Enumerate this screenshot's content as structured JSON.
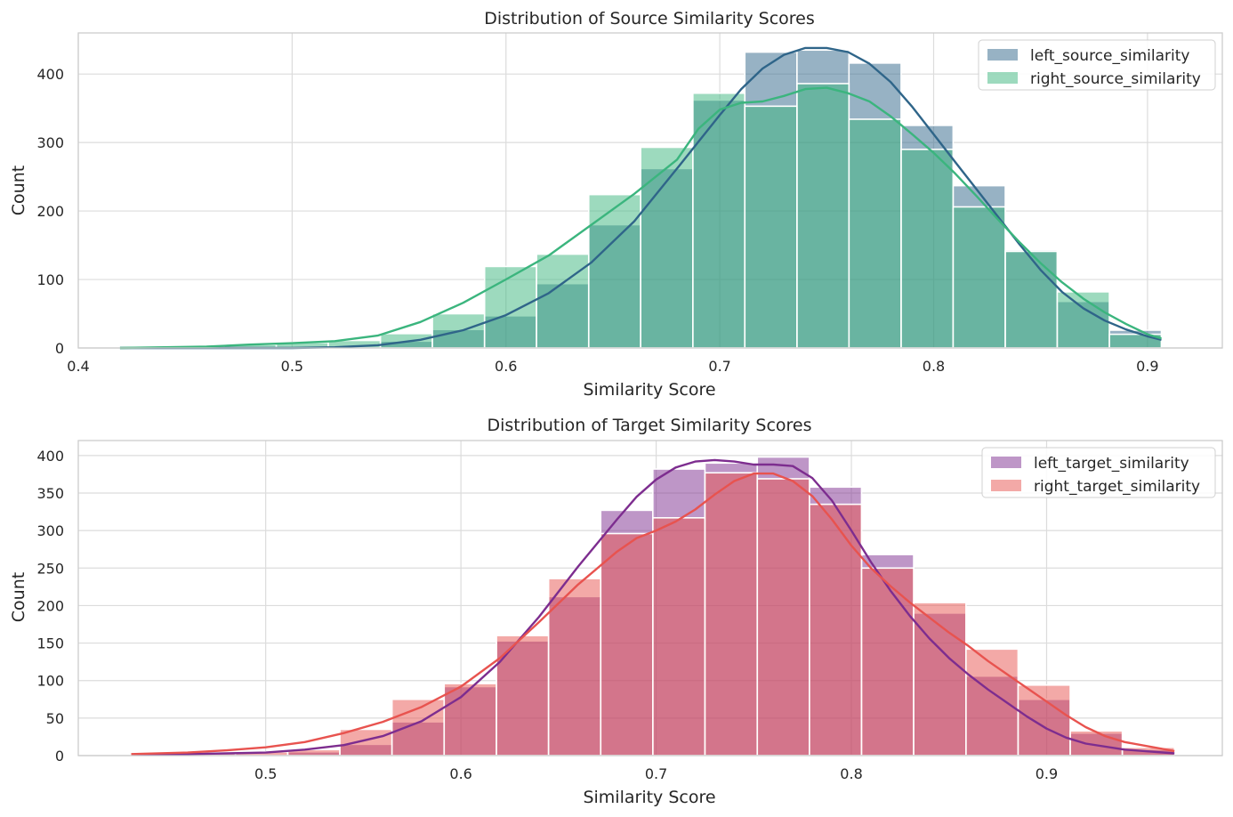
{
  "chart_data": [
    {
      "type": "bar",
      "subtype": "histogram-with-kde",
      "title": "Distribution of Source Similarity Scores",
      "xlabel": "Similarity Score",
      "ylabel": "Count",
      "xlim": [
        0.4,
        0.935
      ],
      "ylim": [
        0,
        460
      ],
      "xticks": [
        0.4,
        0.5,
        0.6,
        0.7,
        0.8,
        0.9
      ],
      "xtick_labels": [
        "0.4",
        "0.5",
        "0.6",
        "0.7",
        "0.8",
        "0.9"
      ],
      "yticks": [
        0,
        100,
        200,
        300,
        400
      ],
      "ytick_labels": [
        "0",
        "100",
        "200",
        "300",
        "400"
      ],
      "grid": true,
      "legend_position": "top-right",
      "bin_edges": [
        0.4195,
        0.4439,
        0.4682,
        0.4926,
        0.5169,
        0.5413,
        0.5656,
        0.59,
        0.6143,
        0.6387,
        0.663,
        0.6874,
        0.7117,
        0.7361,
        0.7604,
        0.7848,
        0.8091,
        0.8335,
        0.8578,
        0.8822,
        0.9065
      ],
      "series": [
        {
          "name": "left_source_similarity",
          "color": "#2f6589",
          "fill_opacity": 0.5,
          "values": [
            1,
            0,
            0,
            0,
            1,
            10,
            27,
            47,
            94,
            180,
            262,
            362,
            432,
            435,
            416,
            325,
            237,
            143,
            68,
            26
          ],
          "kde": [
            [
              0.4195,
              0
            ],
            [
              0.45,
              0
            ],
            [
              0.5,
              0
            ],
            [
              0.52,
              1
            ],
            [
              0.54,
              4
            ],
            [
              0.56,
              12
            ],
            [
              0.58,
              26
            ],
            [
              0.6,
              48
            ],
            [
              0.62,
              80
            ],
            [
              0.64,
              125
            ],
            [
              0.66,
              185
            ],
            [
              0.68,
              262
            ],
            [
              0.7,
              340
            ],
            [
              0.71,
              378
            ],
            [
              0.72,
              408
            ],
            [
              0.73,
              428
            ],
            [
              0.74,
              438
            ],
            [
              0.75,
              438
            ],
            [
              0.76,
              432
            ],
            [
              0.77,
              415
            ],
            [
              0.78,
              388
            ],
            [
              0.79,
              352
            ],
            [
              0.8,
              312
            ],
            [
              0.81,
              272
            ],
            [
              0.82,
              232
            ],
            [
              0.83,
              192
            ],
            [
              0.84,
              152
            ],
            [
              0.85,
              114
            ],
            [
              0.86,
              82
            ],
            [
              0.87,
              58
            ],
            [
              0.88,
              40
            ],
            [
              0.89,
              27
            ],
            [
              0.9,
              17
            ],
            [
              0.9065,
              12
            ]
          ]
        },
        {
          "name": "right_source_similarity",
          "color": "#3bb57e",
          "fill_opacity": 0.5,
          "values": [
            1,
            2,
            5,
            8,
            11,
            21,
            50,
            119,
            137,
            224,
            293,
            372,
            353,
            386,
            334,
            290,
            206,
            141,
            82,
            20
          ],
          "kde": [
            [
              0.4195,
              0
            ],
            [
              0.44,
              1
            ],
            [
              0.46,
              2
            ],
            [
              0.48,
              5
            ],
            [
              0.5,
              7
            ],
            [
              0.52,
              10
            ],
            [
              0.54,
              18
            ],
            [
              0.56,
              38
            ],
            [
              0.58,
              66
            ],
            [
              0.6,
              100
            ],
            [
              0.62,
              135
            ],
            [
              0.64,
              180
            ],
            [
              0.66,
              225
            ],
            [
              0.68,
              275
            ],
            [
              0.69,
              320
            ],
            [
              0.7,
              348
            ],
            [
              0.71,
              358
            ],
            [
              0.72,
              360
            ],
            [
              0.73,
              368
            ],
            [
              0.74,
              378
            ],
            [
              0.75,
              380
            ],
            [
              0.76,
              372
            ],
            [
              0.77,
              360
            ],
            [
              0.78,
              338
            ],
            [
              0.79,
              312
            ],
            [
              0.8,
              285
            ],
            [
              0.81,
              255
            ],
            [
              0.82,
              222
            ],
            [
              0.83,
              188
            ],
            [
              0.84,
              155
            ],
            [
              0.85,
              124
            ],
            [
              0.86,
              96
            ],
            [
              0.87,
              72
            ],
            [
              0.88,
              52
            ],
            [
              0.89,
              35
            ],
            [
              0.9,
              20
            ],
            [
              0.9065,
              14
            ]
          ]
        }
      ]
    },
    {
      "type": "bar",
      "subtype": "histogram-with-kde",
      "title": "Distribution of Target Similarity Scores",
      "xlabel": "Similarity Score",
      "ylabel": "Count",
      "xlim": [
        0.404,
        0.99
      ],
      "ylim": [
        0,
        420
      ],
      "xticks": [
        0.5,
        0.6,
        0.7,
        0.8,
        0.9
      ],
      "xtick_labels": [
        "0.5",
        "0.6",
        "0.7",
        "0.8",
        "0.9"
      ],
      "yticks": [
        0,
        50,
        100,
        150,
        200,
        250,
        300,
        350,
        400
      ],
      "ytick_labels": [
        "0",
        "50",
        "100",
        "150",
        "200",
        "250",
        "300",
        "350",
        "400"
      ],
      "grid": true,
      "legend_position": "top-right",
      "bin_edges": [
        0.4311,
        0.4578,
        0.4845,
        0.5113,
        0.538,
        0.5647,
        0.5914,
        0.6182,
        0.6449,
        0.6716,
        0.6983,
        0.725,
        0.7518,
        0.7785,
        0.8052,
        0.8319,
        0.8587,
        0.8854,
        0.9121,
        0.9388,
        0.9655
      ],
      "series": [
        {
          "name": "left_target_similarity",
          "color": "#7d2d8f",
          "fill_opacity": 0.5,
          "values": [
            1,
            1,
            2,
            5,
            15,
            45,
            92,
            153,
            212,
            327,
            382,
            390,
            398,
            358,
            268,
            190,
            106,
            75,
            30,
            8
          ],
          "kde": [
            [
              0.4311,
              1
            ],
            [
              0.46,
              2
            ],
            [
              0.48,
              3
            ],
            [
              0.5,
              4
            ],
            [
              0.52,
              8
            ],
            [
              0.54,
              14
            ],
            [
              0.56,
              26
            ],
            [
              0.58,
              46
            ],
            [
              0.6,
              78
            ],
            [
              0.62,
              125
            ],
            [
              0.64,
              185
            ],
            [
              0.66,
              252
            ],
            [
              0.68,
              315
            ],
            [
              0.69,
              345
            ],
            [
              0.7,
              368
            ],
            [
              0.71,
              384
            ],
            [
              0.72,
              392
            ],
            [
              0.73,
              394
            ],
            [
              0.74,
              392
            ],
            [
              0.75,
              388
            ],
            [
              0.76,
              388
            ],
            [
              0.77,
              386
            ],
            [
              0.78,
              370
            ],
            [
              0.79,
              340
            ],
            [
              0.8,
              300
            ],
            [
              0.81,
              258
            ],
            [
              0.82,
              220
            ],
            [
              0.83,
              186
            ],
            [
              0.84,
              156
            ],
            [
              0.85,
              130
            ],
            [
              0.86,
              108
            ],
            [
              0.87,
              88
            ],
            [
              0.88,
              70
            ],
            [
              0.89,
              52
            ],
            [
              0.9,
              36
            ],
            [
              0.91,
              24
            ],
            [
              0.92,
              16
            ],
            [
              0.94,
              8
            ],
            [
              0.9655,
              3
            ]
          ]
        },
        {
          "name": "right_target_similarity",
          "color": "#e8534f",
          "fill_opacity": 0.5,
          "values": [
            2,
            3,
            5,
            8,
            35,
            75,
            96,
            160,
            236,
            296,
            317,
            377,
            369,
            335,
            250,
            204,
            142,
            94,
            33,
            11
          ],
          "kde": [
            [
              0.4311,
              2
            ],
            [
              0.46,
              4
            ],
            [
              0.48,
              7
            ],
            [
              0.5,
              11
            ],
            [
              0.52,
              18
            ],
            [
              0.54,
              30
            ],
            [
              0.56,
              45
            ],
            [
              0.58,
              65
            ],
            [
              0.6,
              92
            ],
            [
              0.62,
              130
            ],
            [
              0.64,
              178
            ],
            [
              0.66,
              228
            ],
            [
              0.68,
              272
            ],
            [
              0.69,
              290
            ],
            [
              0.7,
              300
            ],
            [
              0.71,
              312
            ],
            [
              0.72,
              328
            ],
            [
              0.73,
              348
            ],
            [
              0.74,
              366
            ],
            [
              0.75,
              376
            ],
            [
              0.76,
              376
            ],
            [
              0.77,
              366
            ],
            [
              0.78,
              346
            ],
            [
              0.79,
              315
            ],
            [
              0.8,
              280
            ],
            [
              0.81,
              250
            ],
            [
              0.82,
              226
            ],
            [
              0.83,
              204
            ],
            [
              0.84,
              184
            ],
            [
              0.85,
              164
            ],
            [
              0.86,
              146
            ],
            [
              0.87,
              126
            ],
            [
              0.88,
              108
            ],
            [
              0.89,
              90
            ],
            [
              0.9,
              72
            ],
            [
              0.91,
              54
            ],
            [
              0.92,
              38
            ],
            [
              0.93,
              26
            ],
            [
              0.94,
              18
            ],
            [
              0.9655,
              6
            ]
          ]
        }
      ]
    }
  ]
}
